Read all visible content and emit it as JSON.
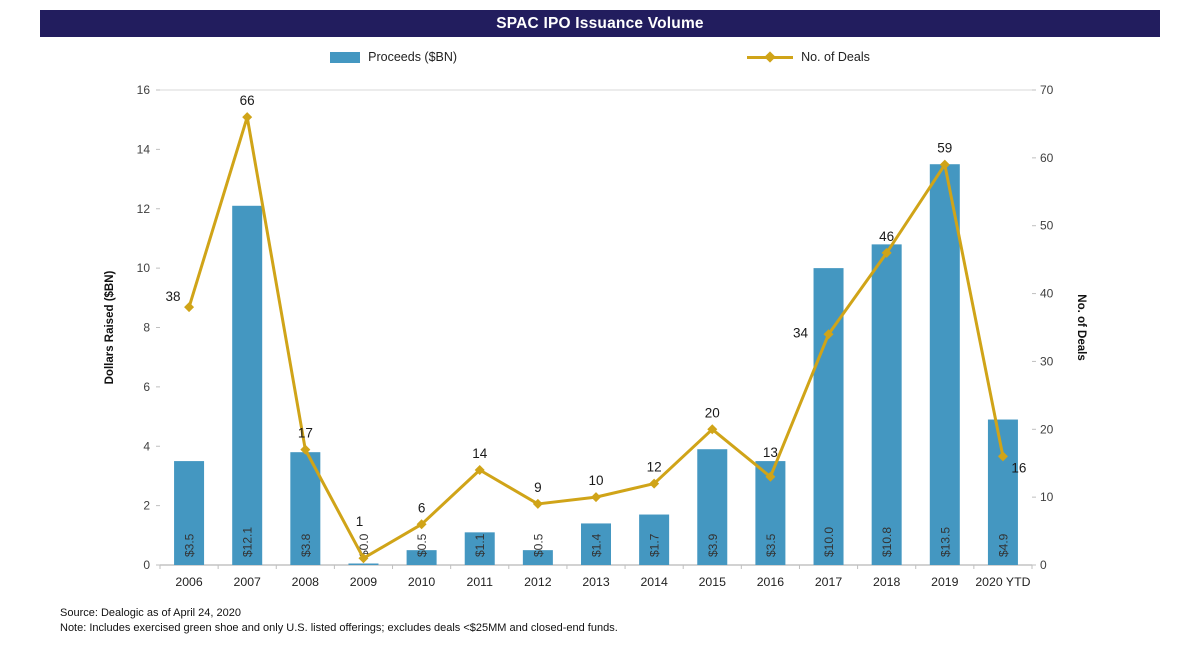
{
  "title": "SPAC IPO Issuance Volume",
  "legend": {
    "bars_label": "Proceeds ($BN)",
    "line_label": "No. of Deals"
  },
  "footer": {
    "source": "Source: Dealogic as of April 24, 2020",
    "note": "Note: Includes exercised green shoe and only U.S. listed offerings; excludes deals <$25MM and closed-end funds."
  },
  "colors": {
    "title_bg": "#221D5E",
    "bar": "#4497C1",
    "line": "#D0A418",
    "axis_line": "#A6A6A6",
    "grid_top": "#D9D9D9",
    "tick": "#BFBFBF",
    "tick_label": "#404040",
    "bar_label": "#333333",
    "deal_label": "#1A1A1A"
  },
  "chart_data": {
    "type": "bar+line",
    "title": "SPAC IPO Issuance Volume",
    "categories": [
      "2006",
      "2007",
      "2008",
      "2009",
      "2010",
      "2011",
      "2012",
      "2013",
      "2014",
      "2015",
      "2016",
      "2017",
      "2018",
      "2019",
      "2020 YTD"
    ],
    "series": [
      {
        "name": "Proceeds ($BN)",
        "type": "bar",
        "axis": "left",
        "values": [
          3.5,
          12.1,
          3.8,
          0.0,
          0.5,
          1.1,
          0.5,
          1.4,
          1.7,
          3.9,
          3.5,
          10.0,
          10.8,
          13.5,
          4.9
        ],
        "labels": [
          "$3.5",
          "$12.1",
          "$3.8",
          "$0.0",
          "$0.5",
          "$1.1",
          "$0.5",
          "$1.4",
          "$1.7",
          "$3.9",
          "$3.5",
          "$10.0",
          "$10.8",
          "$13.5",
          "$4.9"
        ]
      },
      {
        "name": "No. of Deals",
        "type": "line",
        "axis": "right",
        "values": [
          38,
          66,
          17,
          1,
          6,
          14,
          9,
          10,
          12,
          20,
          13,
          34,
          46,
          59,
          16
        ],
        "labels": [
          "38",
          "66",
          "17",
          "1",
          "6",
          "14",
          "9",
          "10",
          "12",
          "20",
          "13",
          "34",
          "46",
          "59",
          "16"
        ]
      }
    ],
    "left_axis": {
      "label": "Dollars Raised ($BN)",
      "min": 0,
      "max": 16,
      "step": 2
    },
    "right_axis": {
      "label": "No. of Deals",
      "min": 0,
      "max": 70,
      "step": 10
    },
    "legend_position": "top",
    "grid": "off",
    "label_offsets": {
      "0": [
        -16,
        -6
      ],
      "3": [
        -4,
        -32
      ],
      "10": [
        0,
        -20
      ],
      "11": [
        -28,
        3
      ],
      "14": [
        16,
        16
      ]
    },
    "default_label_offset": [
      0,
      -12
    ]
  }
}
